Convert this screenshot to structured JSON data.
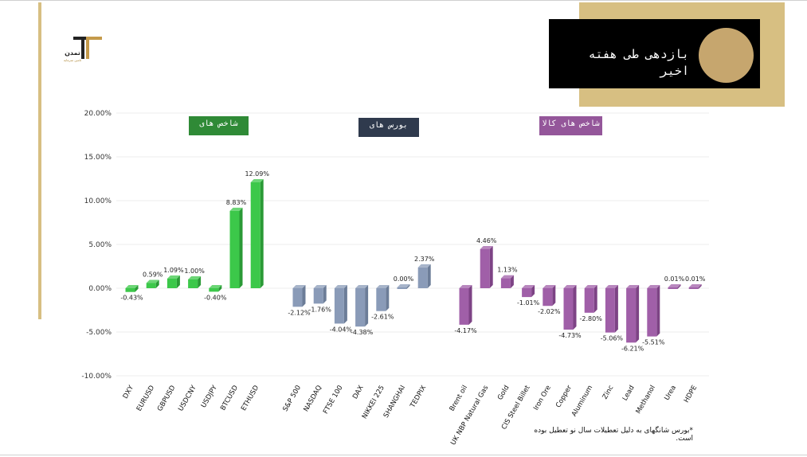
{
  "header": {
    "title": "بازدهی طی هفته اخیر",
    "logo_text": "تمدن",
    "logo_subtext": "تامین سرمایه"
  },
  "groups": [
    {
      "label": "شاخص های",
      "color": "#2f8a36"
    },
    {
      "label": "بورس های",
      "color": "#2f3a4d"
    },
    {
      "label": "شاخص های کالا",
      "color": "#94569a"
    }
  ],
  "footnote": "*بورس شانگهای به دلیل تعطیلات سال نو تعطیل بوده است.",
  "colors": {
    "green": "#3cc84a",
    "blue_gray": "#8a9bb8",
    "purple": "#a05fa8",
    "gold": "#d7bf82"
  },
  "chart_data": {
    "type": "bar",
    "ylim": [
      -10,
      20
    ],
    "yticks": [
      "20.00%",
      "15.00%",
      "10.00%",
      "5.00%",
      "0.00%",
      "-5.00%",
      "-10.00%"
    ],
    "ytick_values": [
      20,
      15,
      10,
      5,
      0,
      -5,
      -10
    ],
    "grid": true,
    "categories": [
      "DXY",
      "EURUSD",
      "GBPUSD",
      "USDCNY",
      "USDJPY",
      "BTCUSD",
      "ETHUSD",
      "S&P 500",
      "NASDAQ",
      "FTSE 100",
      "DAX",
      "NIKKEI 225",
      "SHANGHAI",
      "TEDPIX",
      "Brent oil",
      "UK NBP Natural Gas",
      "Gold",
      "CIS Steel Billet",
      "Iron Ore",
      "Copper",
      "Aluminum",
      "Zinc",
      "Lead",
      "Methanol",
      "Urea",
      "HDPE"
    ],
    "values": [
      -0.43,
      0.59,
      1.09,
      1.0,
      -0.4,
      8.83,
      12.09,
      -2.12,
      -1.76,
      -4.04,
      -4.38,
      -2.61,
      0.0,
      2.37,
      -4.17,
      4.46,
      1.13,
      -1.01,
      -2.02,
      -4.73,
      -2.8,
      -5.06,
      -6.21,
      -5.51,
      0.01,
      0.01
    ],
    "value_labels": [
      "-0.43%",
      "0.59%",
      "1.09%",
      "1.00%",
      "-0.40%",
      "8.83%",
      "12.09%",
      "-2.12%",
      "-1.76%",
      "-4.04%",
      "-4.38%",
      "-2.61%",
      "0.00%",
      "2.37%",
      "-4.17%",
      "4.46%",
      "1.13%",
      "-1.01%",
      "-2.02%",
      "-4.73%",
      "-2.80%",
      "-5.06%",
      "-6.21%",
      "-5.51%",
      "0.01%",
      "0.01%"
    ],
    "group_index": [
      0,
      0,
      0,
      0,
      0,
      0,
      0,
      1,
      1,
      1,
      1,
      1,
      1,
      1,
      2,
      2,
      2,
      2,
      2,
      2,
      2,
      2,
      2,
      2,
      2,
      2
    ]
  }
}
